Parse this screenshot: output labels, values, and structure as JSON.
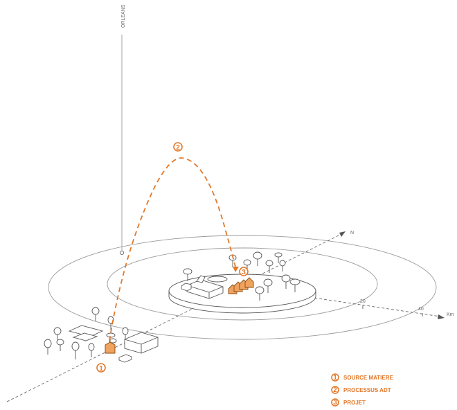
{
  "city_label": "ORLEANS",
  "axis": {
    "north_label": "N",
    "distance_unit": "Km",
    "tick_20": "20",
    "tick_40": "40"
  },
  "steps": {
    "one": "1",
    "two": "2",
    "three": "3"
  },
  "legend": [
    {
      "number": "1",
      "label": "SOURCE MATIERE"
    },
    {
      "number": "2",
      "label": "PROCESSUS ADT"
    },
    {
      "number": "3",
      "label": "PROJET"
    }
  ],
  "colors": {
    "accent": "#e3782a",
    "building_fill": "#f0a35e",
    "line_gray": "#8a8a8a"
  }
}
